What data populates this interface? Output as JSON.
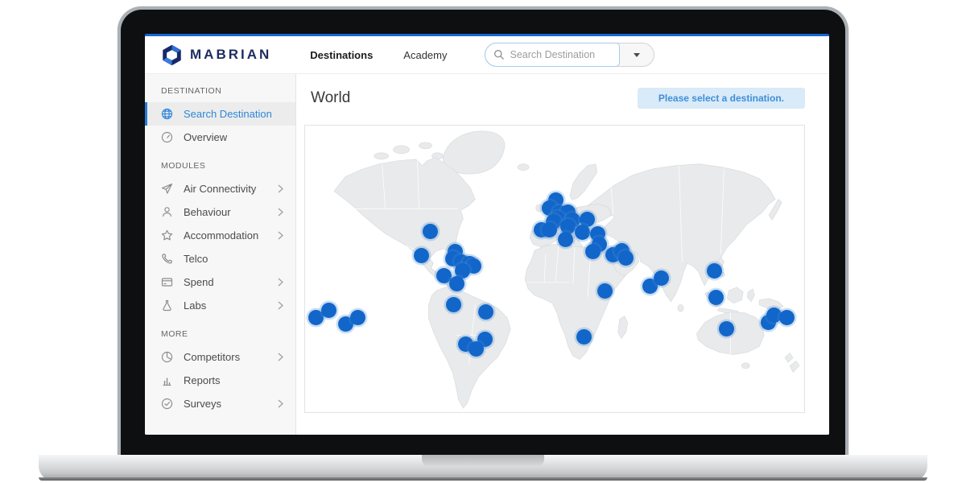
{
  "header": {
    "brand": "MABRIAN",
    "nav": [
      {
        "label": "Destinations",
        "active": true
      },
      {
        "label": "Academy",
        "active": false
      }
    ],
    "search": {
      "placeholder": "Search Destination"
    }
  },
  "sidebar": {
    "sections": [
      {
        "title": "DESTINATION",
        "items": [
          {
            "label": "Search Destination",
            "icon": "globe-icon",
            "active": true,
            "chevron": false
          },
          {
            "label": "Overview",
            "icon": "gauge-icon",
            "active": false,
            "chevron": false
          }
        ]
      },
      {
        "title": "MODULES",
        "items": [
          {
            "label": "Air Connectivity",
            "icon": "plane-icon",
            "active": false,
            "chevron": true
          },
          {
            "label": "Behaviour",
            "icon": "person-icon",
            "active": false,
            "chevron": true
          },
          {
            "label": "Accommodation",
            "icon": "star-icon",
            "active": false,
            "chevron": true
          },
          {
            "label": "Telco",
            "icon": "phone-icon",
            "active": false,
            "chevron": false
          },
          {
            "label": "Spend",
            "icon": "card-icon",
            "active": false,
            "chevron": true
          },
          {
            "label": "Labs",
            "icon": "flask-icon",
            "active": false,
            "chevron": true
          }
        ]
      },
      {
        "title": "MORE",
        "items": [
          {
            "label": "Competitors",
            "icon": "pie-icon",
            "active": false,
            "chevron": true
          },
          {
            "label": "Reports",
            "icon": "bar-chart-icon",
            "active": false,
            "chevron": false
          },
          {
            "label": "Surveys",
            "icon": "check-circle-icon",
            "active": false,
            "chevron": true
          }
        ]
      }
    ]
  },
  "main": {
    "title": "World",
    "notice": "Please select a destination."
  },
  "map": {
    "marker_color": "#1266c9",
    "dots": [
      [
        2.1,
        67.0
      ],
      [
        4.7,
        64.5
      ],
      [
        8.2,
        69.3
      ],
      [
        10.5,
        67.0
      ],
      [
        25.1,
        36.9
      ],
      [
        23.3,
        45.5
      ],
      [
        30.1,
        43.9
      ],
      [
        29.6,
        46.6
      ],
      [
        31.4,
        47.5
      ],
      [
        33.0,
        48.3
      ],
      [
        33.8,
        48.9
      ],
      [
        31.5,
        50.8
      ],
      [
        27.8,
        52.5
      ],
      [
        30.4,
        55.3
      ],
      [
        29.7,
        62.6
      ],
      [
        36.2,
        65.1
      ],
      [
        36.0,
        74.6
      ],
      [
        32.2,
        76.3
      ],
      [
        34.2,
        77.9
      ],
      [
        50.2,
        26.0
      ],
      [
        49.0,
        28.8
      ],
      [
        51.0,
        30.4
      ],
      [
        52.7,
        30.2
      ],
      [
        50.5,
        32.4
      ],
      [
        49.8,
        33.5
      ],
      [
        53.7,
        33.0
      ],
      [
        56.6,
        32.7
      ],
      [
        47.3,
        36.3
      ],
      [
        48.9,
        36.3
      ],
      [
        52.6,
        35.2
      ],
      [
        55.5,
        37.2
      ],
      [
        52.1,
        39.7
      ],
      [
        58.7,
        37.7
      ],
      [
        59.0,
        41.3
      ],
      [
        57.7,
        43.9
      ],
      [
        61.7,
        45.0
      ],
      [
        63.5,
        43.6
      ],
      [
        64.3,
        46.1
      ],
      [
        60.1,
        57.8
      ],
      [
        55.9,
        73.7
      ],
      [
        69.1,
        55.9
      ],
      [
        71.4,
        53.1
      ],
      [
        82.0,
        50.6
      ],
      [
        82.3,
        60.1
      ],
      [
        84.4,
        70.9
      ],
      [
        92.9,
        68.7
      ],
      [
        93.9,
        66.2
      ],
      [
        96.5,
        67.0
      ]
    ]
  },
  "colors": {
    "accent_blue": "#1568d4",
    "marker_blue": "#1266c9",
    "badge_bg": "#d9eaf8",
    "badge_text": "#3f8fd8",
    "brand_navy": "#1d2c5f"
  }
}
